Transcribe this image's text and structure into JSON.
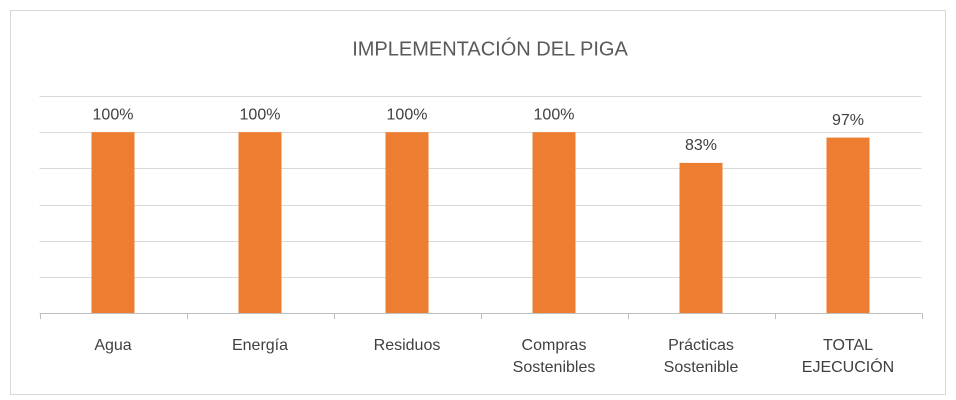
{
  "chart_data": {
    "type": "bar",
    "title": "IMPLEMENTACIÓN DEL PIGA",
    "categories": [
      "Agua",
      "Energía",
      "Residuos",
      "Compras Sostenibles",
      "Prácticas Sostenible",
      "TOTAL EJECUCIÓN"
    ],
    "values": [
      100,
      100,
      100,
      100,
      83,
      97
    ],
    "value_labels": [
      "100%",
      "100%",
      "100%",
      "100%",
      "83%",
      "97%"
    ],
    "color": "#ed7d31",
    "ylim": [
      0,
      120
    ],
    "yticks": [
      0,
      20,
      40,
      60,
      80,
      100,
      120
    ],
    "grid": true
  }
}
